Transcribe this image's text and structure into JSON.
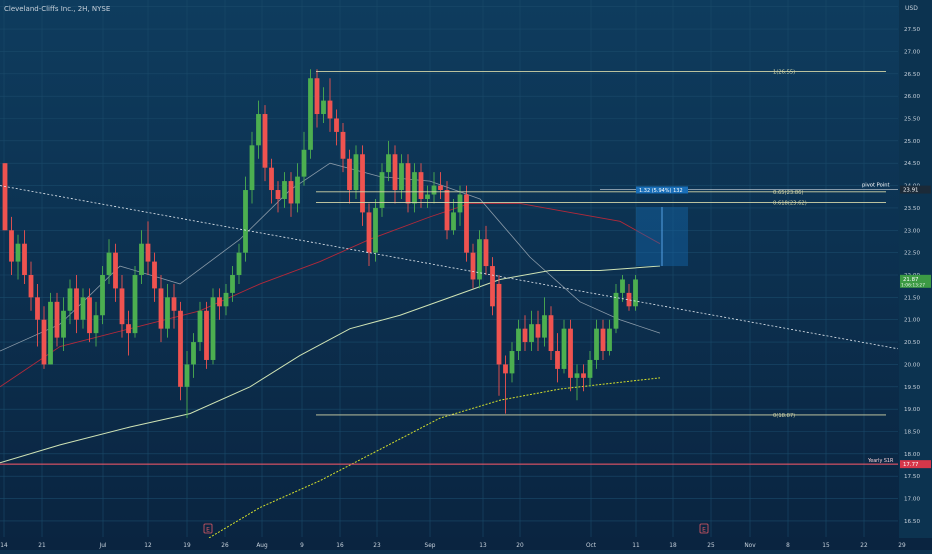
{
  "header": {
    "title": "Cleveland-Cliffs Inc., 2H, NYSE"
  },
  "price_axis": {
    "currency": "USD",
    "current_price": "21.87",
    "countdown": "1:06:13:27"
  },
  "colors": {
    "bg_top": "#0d3a5c",
    "bg_bottom": "#0b2540",
    "up": "#4caf50",
    "down": "#ef5350",
    "fib": "#d4d6a8",
    "pivot": "#ffffff",
    "yearly_s1": "#ff5a6a",
    "ma_red": "#b2293a",
    "ma_grey": "#8a9aa8",
    "ma_cream": "#cfe3b5",
    "ma_yellow": "#d4e02c"
  },
  "annotations": {
    "fib_1": "1(26.55)",
    "fib_065": "0.65(23.86)",
    "fib_0618": "0.618(23.62)",
    "fib_0": "0(18.87)",
    "pivot_label": "pivot Point",
    "pivot_price": "23.91",
    "yearly_label": "Yearly S1R",
    "yearly_price": "17.77",
    "measure": "1.32 (5.94%) 132",
    "event_e1": "E",
    "event_e2": "E"
  },
  "chart_data": {
    "type": "candlestick",
    "title": "Cleveland-Cliffs Inc., 2H, NYSE",
    "ylim": [
      15.85,
      28.15
    ],
    "y_ticks": [
      16.0,
      16.5,
      17.0,
      17.5,
      18.0,
      18.5,
      19.0,
      19.5,
      20.0,
      20.5,
      21.0,
      21.5,
      22.0,
      22.5,
      23.0,
      23.5,
      24.0,
      24.5,
      25.0,
      25.5,
      26.0,
      26.5,
      27.0,
      27.5,
      28.0
    ],
    "x_ticks": [
      "14",
      "21",
      "Jul",
      "12",
      "19",
      "26",
      "Aug",
      "9",
      "16",
      "23",
      "Sep",
      "13",
      "20",
      "Oct",
      "11",
      "18",
      "25",
      "Nov",
      "8",
      "15",
      "22",
      "29"
    ],
    "candles": [
      [
        24.5,
        23.0,
        24.5,
        23.0
      ],
      [
        23.0,
        22.3,
        23.3,
        22.0
      ],
      [
        22.3,
        22.7,
        22.9,
        21.9
      ],
      [
        22.7,
        22.0,
        23.0,
        21.8
      ],
      [
        22.0,
        21.5,
        22.3,
        21.2
      ],
      [
        21.5,
        21.0,
        21.8,
        20.4
      ],
      [
        21.0,
        20.0,
        21.3,
        19.9
      ],
      [
        20.0,
        21.4,
        21.6,
        20.0
      ],
      [
        21.4,
        20.6,
        21.6,
        20.4
      ],
      [
        20.6,
        21.2,
        21.5,
        20.3
      ],
      [
        21.2,
        21.7,
        21.9,
        20.9
      ],
      [
        21.7,
        21.0,
        22.0,
        20.7
      ],
      [
        21.0,
        21.5,
        21.7,
        20.8
      ],
      [
        21.5,
        20.7,
        21.7,
        20.5
      ],
      [
        20.7,
        21.1,
        21.4,
        20.4
      ],
      [
        21.1,
        22.0,
        22.2,
        20.9
      ],
      [
        22.0,
        22.5,
        22.8,
        21.8
      ],
      [
        22.5,
        21.7,
        22.7,
        21.4
      ],
      [
        21.7,
        20.9,
        22.0,
        20.6
      ],
      [
        20.9,
        20.7,
        21.2,
        20.2
      ],
      [
        20.7,
        22.0,
        22.2,
        20.6
      ],
      [
        22.0,
        22.7,
        23.0,
        21.8
      ],
      [
        22.7,
        22.3,
        23.2,
        22.0
      ],
      [
        22.3,
        21.7,
        22.5,
        21.4
      ],
      [
        21.7,
        20.8,
        22.0,
        20.5
      ],
      [
        20.8,
        21.5,
        21.8,
        20.6
      ],
      [
        21.5,
        21.2,
        21.8,
        20.8
      ],
      [
        21.2,
        19.5,
        21.4,
        19.2
      ],
      [
        19.5,
        20.0,
        20.3,
        18.8
      ],
      [
        20.0,
        20.5,
        20.7,
        19.7
      ],
      [
        20.5,
        21.2,
        21.4,
        20.3
      ],
      [
        21.2,
        20.1,
        21.4,
        19.9
      ],
      [
        20.1,
        21.5,
        21.7,
        20.0
      ],
      [
        21.5,
        21.3,
        21.7,
        21.0
      ],
      [
        21.3,
        21.6,
        21.8,
        21.1
      ],
      [
        21.6,
        22.0,
        22.2,
        21.4
      ],
      [
        22.0,
        22.5,
        22.7,
        21.8
      ],
      [
        22.5,
        23.9,
        24.2,
        22.3
      ],
      [
        23.9,
        24.9,
        25.2,
        23.6
      ],
      [
        24.9,
        25.6,
        25.9,
        24.6
      ],
      [
        25.6,
        24.4,
        25.8,
        24.1
      ],
      [
        24.4,
        23.9,
        24.6,
        23.6
      ],
      [
        23.9,
        23.7,
        24.1,
        23.4
      ],
      [
        23.7,
        24.1,
        24.3,
        23.5
      ],
      [
        24.1,
        23.6,
        24.3,
        23.3
      ],
      [
        23.6,
        24.2,
        24.5,
        23.4
      ],
      [
        24.2,
        24.8,
        25.2,
        24.0
      ],
      [
        24.8,
        26.4,
        26.6,
        24.6
      ],
      [
        26.4,
        25.6,
        26.6,
        25.3
      ],
      [
        25.6,
        25.9,
        26.2,
        25.4
      ],
      [
        25.9,
        25.5,
        26.4,
        25.2
      ],
      [
        25.5,
        25.2,
        25.7,
        24.9
      ],
      [
        25.2,
        24.6,
        25.4,
        24.3
      ],
      [
        24.6,
        23.9,
        24.8,
        23.6
      ],
      [
        23.9,
        24.7,
        24.9,
        23.7
      ],
      [
        24.7,
        23.4,
        24.9,
        23.1
      ],
      [
        23.4,
        22.5,
        23.6,
        22.2
      ],
      [
        22.5,
        23.5,
        23.7,
        22.3
      ],
      [
        23.5,
        24.3,
        24.5,
        23.3
      ],
      [
        24.3,
        24.7,
        25.0,
        24.1
      ],
      [
        24.7,
        23.9,
        24.9,
        23.6
      ],
      [
        23.9,
        24.5,
        24.7,
        23.7
      ],
      [
        24.5,
        23.6,
        24.7,
        23.4
      ],
      [
        23.6,
        24.3,
        24.5,
        23.4
      ],
      [
        24.3,
        23.7,
        24.5,
        23.5
      ],
      [
        23.7,
        23.8,
        24.0,
        23.5
      ],
      [
        23.8,
        24.0,
        24.3,
        23.6
      ],
      [
        24.0,
        23.9,
        24.3,
        23.7
      ],
      [
        23.9,
        23.0,
        24.1,
        22.8
      ],
      [
        23.0,
        23.4,
        23.7,
        22.9
      ],
      [
        23.4,
        23.8,
        24.0,
        23.1
      ],
      [
        23.8,
        22.5,
        24.0,
        22.3
      ],
      [
        22.5,
        21.9,
        22.7,
        21.7
      ],
      [
        21.9,
        22.8,
        23.0,
        21.7
      ],
      [
        22.8,
        22.2,
        23.1,
        22.0
      ],
      [
        22.2,
        21.3,
        22.4,
        21.1
      ],
      [
        21.8,
        20.0,
        22.0,
        19.3
      ],
      [
        20.0,
        19.8,
        20.2,
        18.9
      ],
      [
        19.8,
        20.3,
        20.5,
        19.6
      ],
      [
        20.3,
        20.8,
        21.0,
        20.1
      ],
      [
        20.8,
        20.5,
        21.1,
        20.3
      ],
      [
        20.5,
        20.9,
        21.2,
        20.3
      ],
      [
        20.9,
        20.6,
        21.2,
        20.3
      ],
      [
        20.6,
        21.1,
        21.5,
        20.4
      ],
      [
        21.1,
        20.3,
        21.3,
        20.1
      ],
      [
        20.3,
        19.9,
        20.7,
        19.6
      ],
      [
        19.9,
        20.8,
        21.0,
        19.8
      ],
      [
        20.8,
        19.7,
        21.0,
        19.4
      ],
      [
        19.7,
        19.8,
        20.0,
        19.2
      ],
      [
        19.8,
        19.7,
        20.0,
        19.4
      ],
      [
        19.7,
        20.1,
        20.3,
        19.5
      ],
      [
        20.1,
        20.8,
        21.0,
        19.9
      ],
      [
        20.8,
        20.3,
        21.0,
        20.1
      ],
      [
        20.3,
        20.8,
        21.0,
        20.2
      ],
      [
        20.8,
        21.6,
        21.8,
        20.7
      ],
      [
        21.6,
        21.9,
        22.0,
        21.4
      ],
      [
        21.6,
        21.3,
        21.8,
        21.2
      ],
      [
        21.3,
        21.9,
        22.0,
        21.2
      ]
    ],
    "fib_levels": [
      {
        "label": "1(26.55)",
        "price": 26.55
      },
      {
        "label": "0.65(23.86)",
        "price": 23.86
      },
      {
        "label": "0.618(23.62)",
        "price": 23.62
      },
      {
        "label": "0(18.87)",
        "price": 18.87
      }
    ],
    "pivot_point": 23.91,
    "yearly_s1": 17.77,
    "current_price": 21.87
  }
}
